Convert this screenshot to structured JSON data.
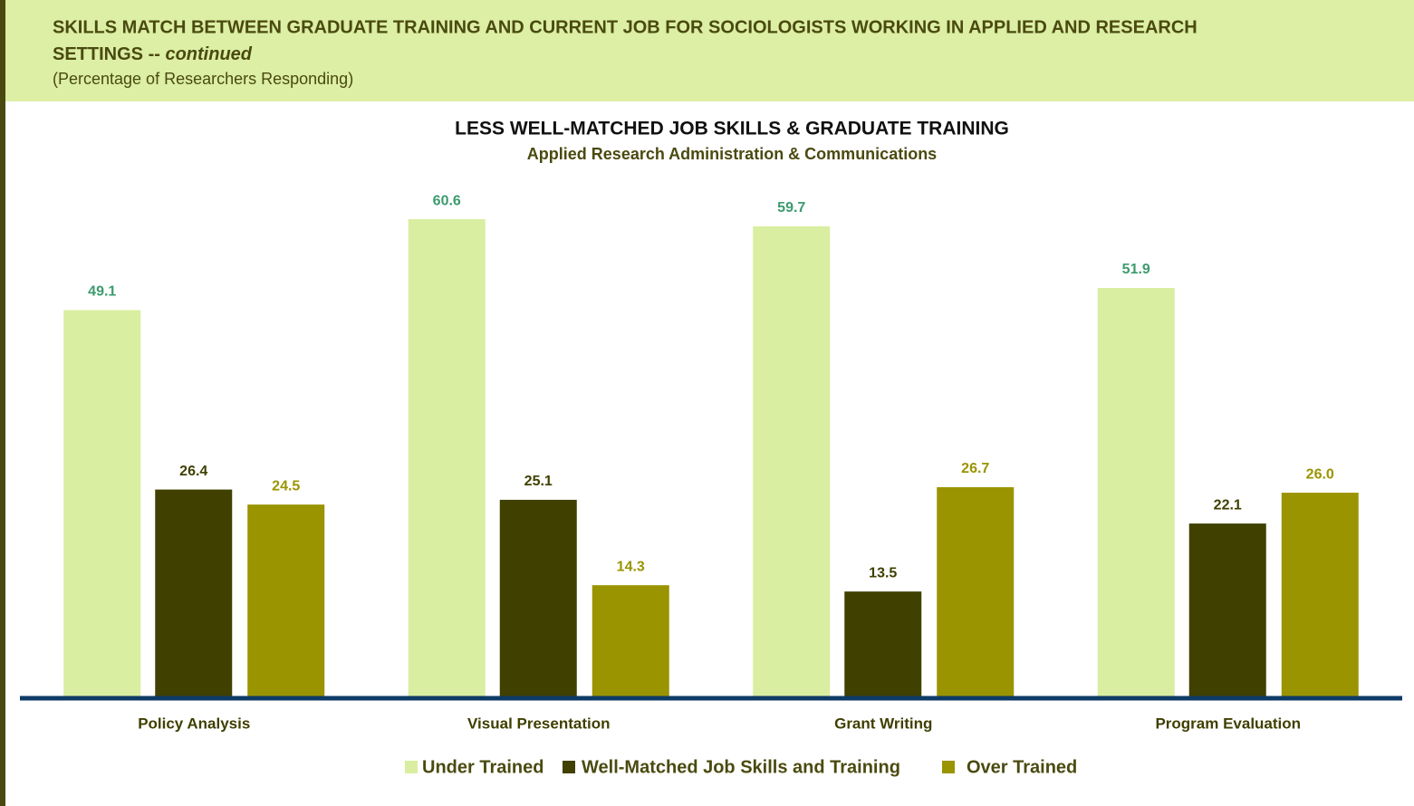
{
  "header": {
    "title": "SKILLS MATCH BETWEEN GRADUATE TRAINING AND CURRENT JOB FOR SOCIOLOGISTS WORKING IN APPLIED AND RESEARCH",
    "title_line2": "SETTINGS --",
    "title_emphasis": "continued",
    "subtitle": "(Percentage of Researchers Responding)"
  },
  "chart_data": {
    "type": "bar",
    "title": "LESS WELL-MATCHED JOB SKILLS & GRADUATE TRAINING",
    "subtitle": "Applied Research Administration & Communications",
    "categories": [
      "Policy Analysis",
      "Visual Presentation",
      "Grant Writing",
      "Program Evaluation"
    ],
    "ylim": [
      0,
      70
    ],
    "series": [
      {
        "name": "Under Trained",
        "color": "#d9eea0",
        "label_color": "#3c9b6e",
        "values": [
          49.1,
          60.6,
          59.7,
          51.9
        ],
        "value_labels": [
          "49.1",
          "60.6",
          "59.7",
          "51.9"
        ]
      },
      {
        "name": "Well-Matched Job Skills and Training",
        "color": "#404000",
        "label_color": "#3f3f00",
        "values": [
          26.4,
          25.1,
          13.5,
          22.1
        ],
        "value_labels": [
          "26.4",
          "25.1",
          "13.5",
          "22.1"
        ]
      },
      {
        "name": "Over Trained",
        "color": "#9a9400",
        "label_color": "#9a9400",
        "values": [
          24.5,
          14.3,
          26.7,
          26.0
        ],
        "value_labels": [
          "24.5",
          "14.3",
          "26.7",
          "26.0"
        ]
      }
    ]
  }
}
